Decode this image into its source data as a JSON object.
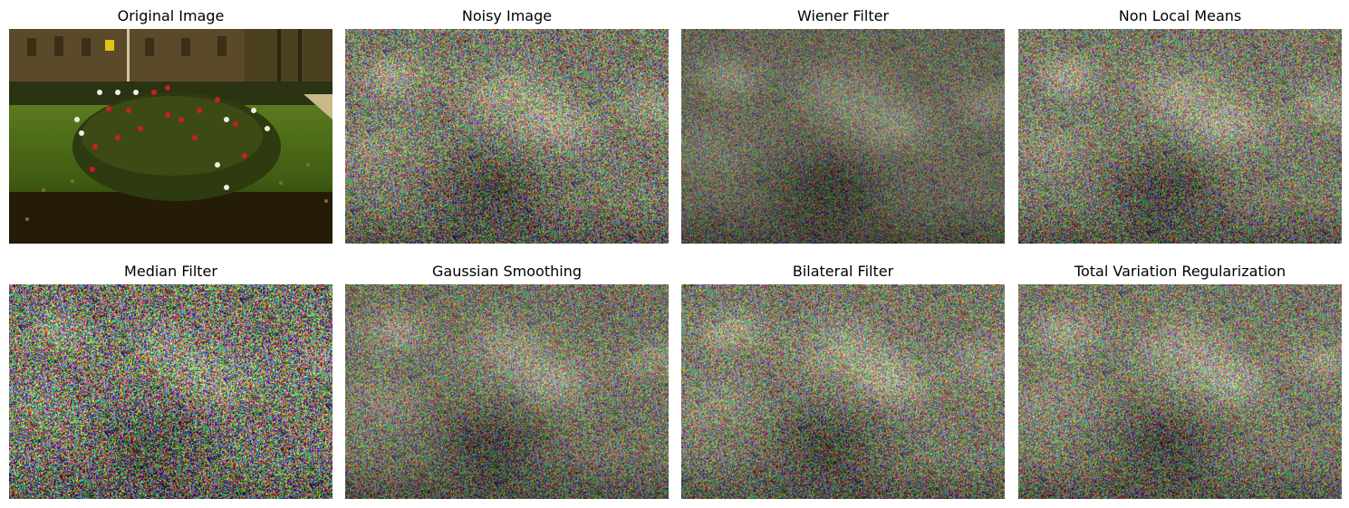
{
  "figure": {
    "panels": [
      {
        "title": "Original Image",
        "kind": "original"
      },
      {
        "title": "Noisy Image",
        "kind": "noisy"
      },
      {
        "title": "Wiener Filter",
        "kind": "wiener"
      },
      {
        "title": "Non Local Means",
        "kind": "nlm"
      },
      {
        "title": "Median Filter",
        "kind": "median"
      },
      {
        "title": "Gaussian Smoothing",
        "kind": "gaussian"
      },
      {
        "title": "Bilateral Filter",
        "kind": "bilateral"
      },
      {
        "title": "Total Variation Regularization",
        "kind": "tv"
      }
    ]
  }
}
